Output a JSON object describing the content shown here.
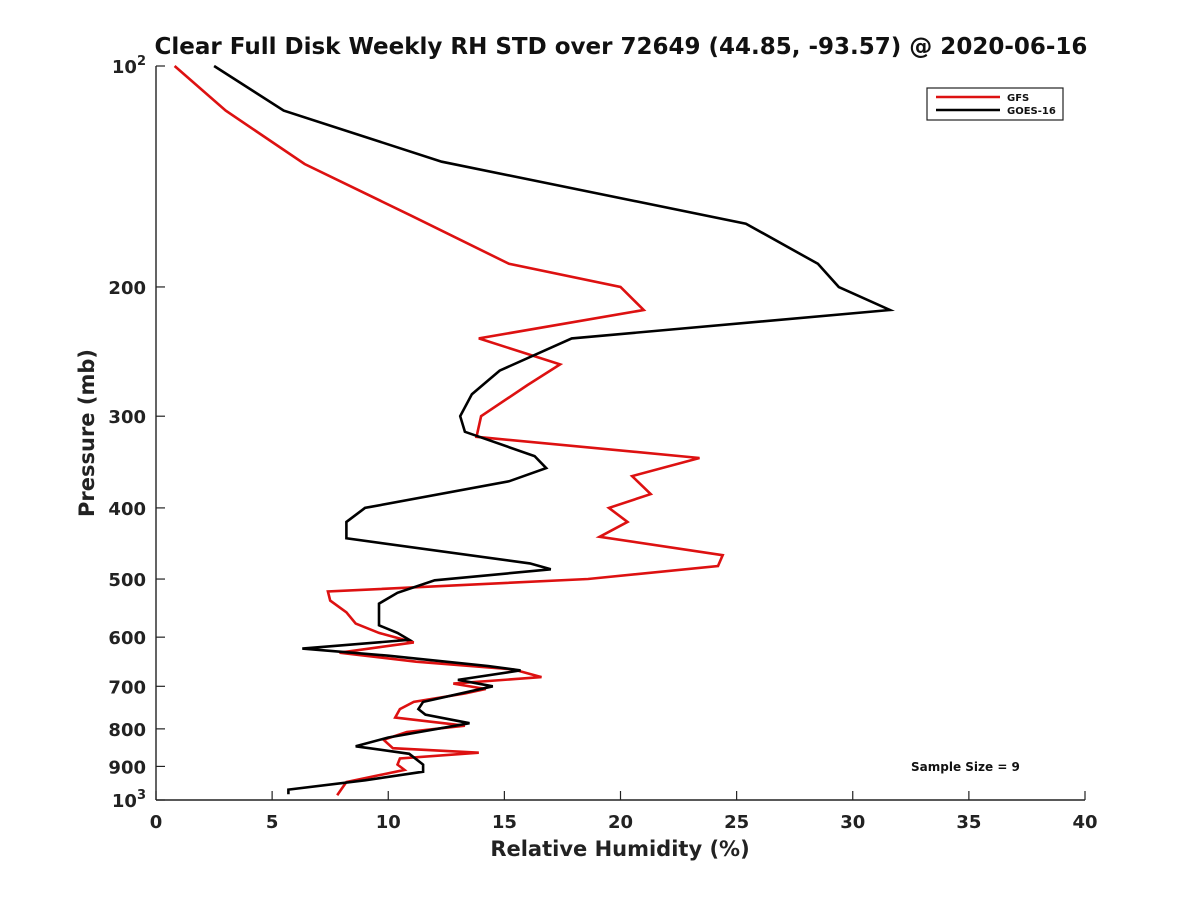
{
  "chart_data": {
    "type": "line",
    "title": "Clear Full Disk Weekly RH STD over 72649 (44.85, -93.57) @ 2020-06-16",
    "xlabel": "Relative Humidity (%)",
    "ylabel": "Pressure (mb)",
    "xlim": [
      0,
      40
    ],
    "ylim": [
      100,
      1000
    ],
    "y_scale": "log",
    "y_reversed": true,
    "grid": false,
    "legend_position": "top-right",
    "x_ticks": [
      "0",
      "5",
      "10",
      "15",
      "20",
      "25",
      "30",
      "35",
      "40"
    ],
    "y_ticks": [
      {
        "value": 100,
        "base": "10",
        "exp": "2"
      },
      {
        "value": 200,
        "label": "200"
      },
      {
        "value": 300,
        "label": "300"
      },
      {
        "value": 400,
        "label": "400"
      },
      {
        "value": 500,
        "label": "500"
      },
      {
        "value": 600,
        "label": "600"
      },
      {
        "value": 700,
        "label": "700"
      },
      {
        "value": 800,
        "label": "800"
      },
      {
        "value": 900,
        "label": "900"
      },
      {
        "value": 1000,
        "base": "10",
        "exp": "3"
      }
    ],
    "annotation": "Sample Size = 9",
    "series": [
      {
        "name": "GFS",
        "color": "#dd1111",
        "points": [
          [
            0.8,
            100
          ],
          [
            3.0,
            115
          ],
          [
            6.4,
            136
          ],
          [
            11.0,
            160
          ],
          [
            15.2,
            186
          ],
          [
            20.0,
            200
          ],
          [
            21.0,
            215
          ],
          [
            13.9,
            235
          ],
          [
            17.4,
            255
          ],
          [
            16.0,
            272
          ],
          [
            14.0,
            300
          ],
          [
            13.8,
            320
          ],
          [
            23.4,
            342
          ],
          [
            20.5,
            362
          ],
          [
            21.3,
            383
          ],
          [
            19.5,
            400
          ],
          [
            20.3,
            418
          ],
          [
            19.1,
            438
          ],
          [
            24.4,
            464
          ],
          [
            24.2,
            480
          ],
          [
            18.6,
            500
          ],
          [
            7.4,
            520
          ],
          [
            7.5,
            535
          ],
          [
            8.2,
            555
          ],
          [
            8.6,
            575
          ],
          [
            9.6,
            592
          ],
          [
            11.1,
            610
          ],
          [
            7.9,
            630
          ],
          [
            11.2,
            648
          ],
          [
            15.4,
            664
          ],
          [
            16.6,
            680
          ],
          [
            12.8,
            694
          ],
          [
            14.2,
            706
          ],
          [
            13.3,
            716
          ],
          [
            11.1,
            735
          ],
          [
            10.5,
            752
          ],
          [
            10.3,
            772
          ],
          [
            13.3,
            792
          ],
          [
            10.8,
            808
          ],
          [
            9.8,
            828
          ],
          [
            10.2,
            850
          ],
          [
            13.9,
            862
          ],
          [
            10.5,
            878
          ],
          [
            10.4,
            895
          ],
          [
            10.7,
            910
          ],
          [
            8.2,
            945
          ],
          [
            7.9,
            975
          ],
          [
            7.8,
            985
          ]
        ]
      },
      {
        "name": "GOES-16",
        "color": "#000000",
        "points": [
          [
            2.5,
            100
          ],
          [
            5.5,
            115
          ],
          [
            12.3,
            135
          ],
          [
            25.4,
            164
          ],
          [
            28.5,
            186
          ],
          [
            29.4,
            200
          ],
          [
            31.6,
            215
          ],
          [
            17.9,
            235
          ],
          [
            14.8,
            260
          ],
          [
            13.6,
            280
          ],
          [
            13.1,
            300
          ],
          [
            13.3,
            315
          ],
          [
            16.3,
            340
          ],
          [
            16.8,
            353
          ],
          [
            15.2,
            368
          ],
          [
            9.0,
            400
          ],
          [
            8.2,
            418
          ],
          [
            8.2,
            440
          ],
          [
            16.1,
            476
          ],
          [
            17.0,
            485
          ],
          [
            12.0,
            502
          ],
          [
            10.4,
            522
          ],
          [
            9.6,
            540
          ],
          [
            9.6,
            578
          ],
          [
            10.4,
            592
          ],
          [
            10.9,
            605
          ],
          [
            6.3,
            622
          ],
          [
            10.0,
            636
          ],
          [
            14.3,
            657
          ],
          [
            15.7,
            666
          ],
          [
            13.0,
            686
          ],
          [
            14.5,
            700
          ],
          [
            11.5,
            735
          ],
          [
            11.3,
            752
          ],
          [
            11.6,
            765
          ],
          [
            13.5,
            786
          ],
          [
            10.0,
            822
          ],
          [
            8.6,
            845
          ],
          [
            10.9,
            865
          ],
          [
            11.5,
            895
          ],
          [
            11.5,
            915
          ],
          [
            9.0,
            940
          ],
          [
            5.7,
            968
          ],
          [
            5.7,
            982
          ]
        ]
      }
    ]
  }
}
